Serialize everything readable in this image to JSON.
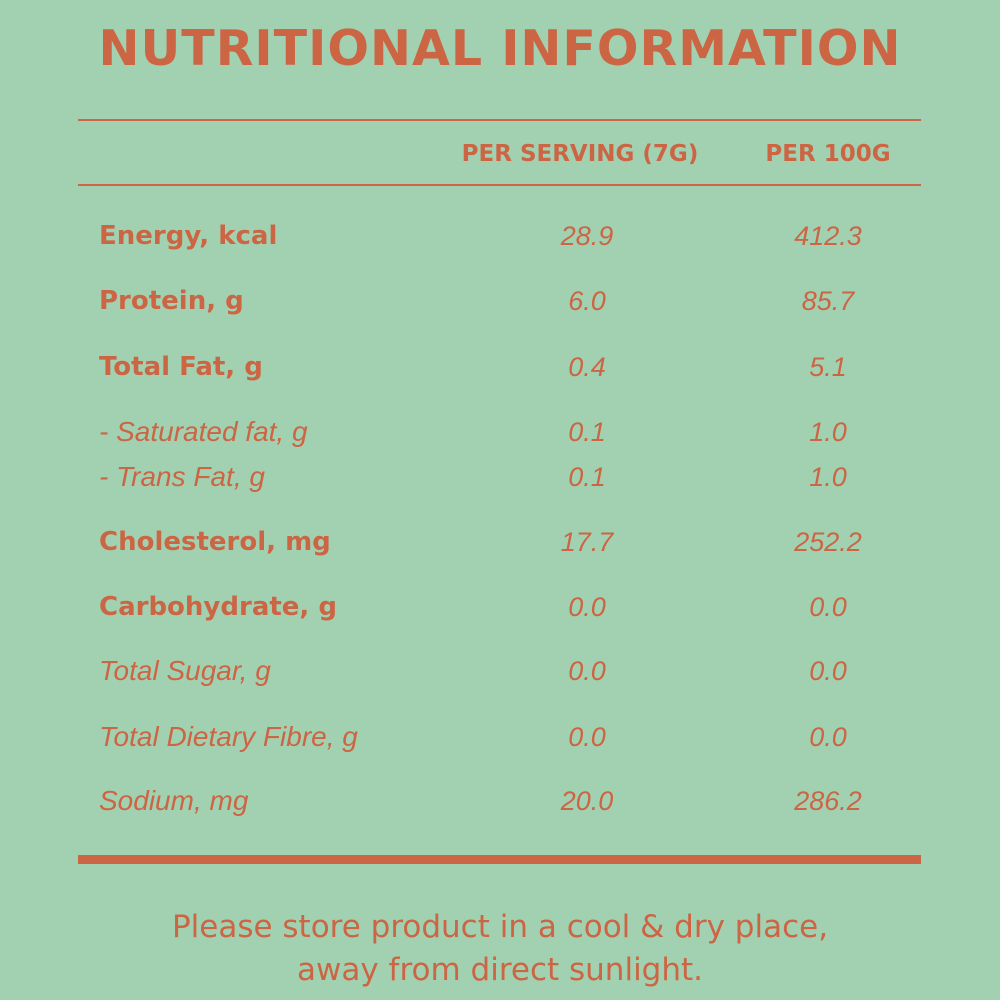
{
  "title": "NUTRITIONAL INFORMATION",
  "columns": {
    "per_serving": "PER SERVING (7G)",
    "per_100g": "PER 100G"
  },
  "rows": [
    {
      "label": "Energy, kcal",
      "per_serving": "28.9",
      "per_100g": "412.3"
    },
    {
      "label": "Protein, g",
      "per_serving": "6.0",
      "per_100g": "85.7"
    },
    {
      "label": "Total Fat, g",
      "per_serving": "0.4",
      "per_100g": "5.1"
    },
    {
      "label": "- Saturated fat, g",
      "per_serving": "0.1",
      "per_100g": "1.0"
    },
    {
      "label": "- Trans Fat, g",
      "per_serving": "0.1",
      "per_100g": "1.0"
    },
    {
      "label": "Cholesterol, mg",
      "per_serving": "17.7",
      "per_100g": "252.2"
    },
    {
      "label": "Carbohydrate, g",
      "per_serving": "0.0",
      "per_100g": "0.0"
    },
    {
      "label": "Total Sugar, g",
      "per_serving": "0.0",
      "per_100g": "0.0"
    },
    {
      "label": "Total Dietary Fibre, g",
      "per_serving": "0.0",
      "per_100g": "0.0"
    },
    {
      "label": "Sodium, mg",
      "per_serving": "20.0",
      "per_100g": "286.2"
    }
  ],
  "storage_note": {
    "line1": "Please store product in a cool & dry place,",
    "line2": "away from direct sunlight."
  },
  "colors": {
    "background": "#a2d1b1",
    "accent": "#cc6544"
  }
}
